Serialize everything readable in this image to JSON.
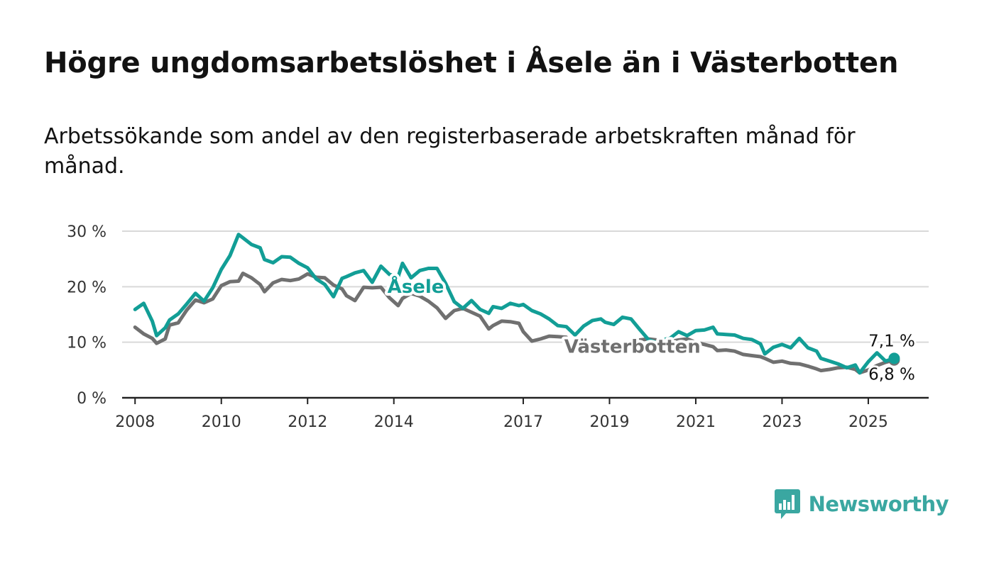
{
  "header": {
    "title": "Högre ungdomsarbetslöshet i Åsele än i Västerbotten",
    "subtitle": "Arbetssökande som andel av den registerbaserade arbetskraften månad för månad."
  },
  "brand": {
    "name": "Newsworthy",
    "color": "#3aa7a1",
    "icon": "newsworthy-logo-icon"
  },
  "chart_data": {
    "type": "line",
    "x_unit": "year (decimal, monthly observations)",
    "y_unit": "%",
    "ylim": [
      0,
      30
    ],
    "xlim": [
      2007.7,
      2026.4
    ],
    "y_ticks": [
      {
        "value": 0,
        "label": "0 %"
      },
      {
        "value": 10,
        "label": "10 %"
      },
      {
        "value": 20,
        "label": "20 %"
      },
      {
        "value": 30,
        "label": "30 %"
      }
    ],
    "x_ticks": [
      {
        "value": 2008,
        "label": "2008"
      },
      {
        "value": 2010,
        "label": "2010"
      },
      {
        "value": 2012,
        "label": "2012"
      },
      {
        "value": 2014,
        "label": "2014"
      },
      {
        "value": 2017,
        "label": "2017"
      },
      {
        "value": 2019,
        "label": "2019"
      },
      {
        "value": 2021,
        "label": "2021"
      },
      {
        "value": 2023,
        "label": "2023"
      },
      {
        "value": 2025,
        "label": "2025"
      }
    ],
    "grid": true,
    "legend": "direct labels",
    "series": [
      {
        "name": "Västerbotten",
        "color": "#707070",
        "label_at": [
          2017.95,
          8.1
        ],
        "end_label": "6,8 %",
        "points": [
          [
            2008.0,
            12.7
          ],
          [
            2008.2,
            11.5
          ],
          [
            2008.4,
            10.7
          ],
          [
            2008.5,
            9.8
          ],
          [
            2008.7,
            10.6
          ],
          [
            2008.8,
            13.1
          ],
          [
            2009.0,
            13.5
          ],
          [
            2009.2,
            15.8
          ],
          [
            2009.4,
            17.6
          ],
          [
            2009.6,
            17.1
          ],
          [
            2009.8,
            17.8
          ],
          [
            2010.0,
            20.2
          ],
          [
            2010.2,
            20.9
          ],
          [
            2010.4,
            21.0
          ],
          [
            2010.5,
            22.4
          ],
          [
            2010.7,
            21.6
          ],
          [
            2010.9,
            20.4
          ],
          [
            2011.0,
            19.1
          ],
          [
            2011.2,
            20.7
          ],
          [
            2011.4,
            21.3
          ],
          [
            2011.6,
            21.1
          ],
          [
            2011.8,
            21.4
          ],
          [
            2012.0,
            22.3
          ],
          [
            2012.2,
            21.7
          ],
          [
            2012.4,
            21.6
          ],
          [
            2012.6,
            20.3
          ],
          [
            2012.8,
            19.6
          ],
          [
            2012.9,
            18.4
          ],
          [
            2013.1,
            17.5
          ],
          [
            2013.3,
            19.9
          ],
          [
            2013.5,
            19.8
          ],
          [
            2013.7,
            19.9
          ],
          [
            2013.9,
            18.0
          ],
          [
            2014.1,
            16.6
          ],
          [
            2014.2,
            17.9
          ],
          [
            2014.4,
            18.8
          ],
          [
            2014.6,
            18.3
          ],
          [
            2014.8,
            17.4
          ],
          [
            2015.0,
            16.2
          ],
          [
            2015.2,
            14.3
          ],
          [
            2015.4,
            15.7
          ],
          [
            2015.6,
            16.1
          ],
          [
            2015.8,
            15.4
          ],
          [
            2016.0,
            14.7
          ],
          [
            2016.2,
            12.4
          ],
          [
            2016.3,
            13.0
          ],
          [
            2016.5,
            13.8
          ],
          [
            2016.7,
            13.7
          ],
          [
            2016.9,
            13.4
          ],
          [
            2017.0,
            11.9
          ],
          [
            2017.2,
            10.2
          ],
          [
            2017.4,
            10.6
          ],
          [
            2017.6,
            11.1
          ],
          [
            2017.8,
            11.0
          ],
          [
            2018.0,
            10.9
          ],
          [
            2018.2,
            8.6
          ],
          [
            2018.4,
            8.6
          ],
          [
            2018.6,
            9.8
          ],
          [
            2018.8,
            9.8
          ],
          [
            2018.9,
            9.5
          ],
          [
            2019.1,
            9.4
          ],
          [
            2019.3,
            9.6
          ],
          [
            2019.5,
            9.9
          ],
          [
            2019.7,
            10.4
          ],
          [
            2019.9,
            10.6
          ],
          [
            2020.1,
            10.4
          ],
          [
            2020.2,
            10.0
          ],
          [
            2020.4,
            10.1
          ],
          [
            2020.6,
            10.4
          ],
          [
            2020.8,
            10.6
          ],
          [
            2021.0,
            10.0
          ],
          [
            2021.2,
            9.6
          ],
          [
            2021.4,
            9.2
          ],
          [
            2021.5,
            8.5
          ],
          [
            2021.7,
            8.6
          ],
          [
            2021.9,
            8.4
          ],
          [
            2022.1,
            7.8
          ],
          [
            2022.3,
            7.6
          ],
          [
            2022.5,
            7.4
          ],
          [
            2022.6,
            7.1
          ],
          [
            2022.8,
            6.4
          ],
          [
            2023.0,
            6.6
          ],
          [
            2023.2,
            6.2
          ],
          [
            2023.4,
            6.1
          ],
          [
            2023.6,
            5.7
          ],
          [
            2023.8,
            5.2
          ],
          [
            2023.9,
            4.9
          ],
          [
            2024.1,
            5.1
          ],
          [
            2024.3,
            5.4
          ],
          [
            2024.5,
            5.5
          ],
          [
            2024.7,
            5.1
          ],
          [
            2024.8,
            4.5
          ],
          [
            2025.0,
            5.0
          ],
          [
            2025.2,
            5.8
          ],
          [
            2025.4,
            6.4
          ],
          [
            2025.6,
            6.8
          ]
        ]
      },
      {
        "name": "Åsele",
        "color": "#129e96",
        "label_at": [
          2013.85,
          18.9
        ],
        "end_label": "7,1 %",
        "points": [
          [
            2008.0,
            15.9
          ],
          [
            2008.2,
            17.0
          ],
          [
            2008.4,
            13.8
          ],
          [
            2008.5,
            11.2
          ],
          [
            2008.7,
            12.6
          ],
          [
            2008.8,
            14.0
          ],
          [
            2009.0,
            15.1
          ],
          [
            2009.2,
            16.9
          ],
          [
            2009.4,
            18.8
          ],
          [
            2009.6,
            17.4
          ],
          [
            2009.8,
            19.8
          ],
          [
            2010.0,
            23.1
          ],
          [
            2010.2,
            25.6
          ],
          [
            2010.4,
            29.4
          ],
          [
            2010.5,
            28.8
          ],
          [
            2010.7,
            27.6
          ],
          [
            2010.9,
            27.0
          ],
          [
            2011.0,
            24.9
          ],
          [
            2011.2,
            24.3
          ],
          [
            2011.4,
            25.4
          ],
          [
            2011.6,
            25.3
          ],
          [
            2011.8,
            24.2
          ],
          [
            2012.0,
            23.4
          ],
          [
            2012.2,
            21.4
          ],
          [
            2012.4,
            20.4
          ],
          [
            2012.6,
            18.2
          ],
          [
            2012.8,
            21.5
          ],
          [
            2012.9,
            21.8
          ],
          [
            2013.1,
            22.5
          ],
          [
            2013.3,
            22.9
          ],
          [
            2013.5,
            20.8
          ],
          [
            2013.7,
            23.7
          ],
          [
            2013.9,
            22.2
          ],
          [
            2014.1,
            21.8
          ],
          [
            2014.2,
            24.2
          ],
          [
            2014.4,
            21.6
          ],
          [
            2014.6,
            22.9
          ],
          [
            2014.8,
            23.3
          ],
          [
            2015.0,
            23.3
          ],
          [
            2015.2,
            20.6
          ],
          [
            2015.4,
            17.3
          ],
          [
            2015.6,
            16.1
          ],
          [
            2015.8,
            17.5
          ],
          [
            2016.0,
            15.9
          ],
          [
            2016.2,
            15.2
          ],
          [
            2016.3,
            16.4
          ],
          [
            2016.5,
            16.1
          ],
          [
            2016.7,
            17.0
          ],
          [
            2016.9,
            16.6
          ],
          [
            2017.0,
            16.8
          ],
          [
            2017.2,
            15.7
          ],
          [
            2017.4,
            15.1
          ],
          [
            2017.6,
            14.2
          ],
          [
            2017.8,
            13.0
          ],
          [
            2018.0,
            12.8
          ],
          [
            2018.2,
            11.3
          ],
          [
            2018.4,
            12.9
          ],
          [
            2018.6,
            13.9
          ],
          [
            2018.8,
            14.2
          ],
          [
            2018.9,
            13.6
          ],
          [
            2019.1,
            13.2
          ],
          [
            2019.3,
            14.5
          ],
          [
            2019.5,
            14.2
          ],
          [
            2019.7,
            12.3
          ],
          [
            2019.9,
            10.5
          ],
          [
            2020.1,
            9.9
          ],
          [
            2020.2,
            10.4
          ],
          [
            2020.4,
            10.7
          ],
          [
            2020.6,
            11.9
          ],
          [
            2020.8,
            11.2
          ],
          [
            2021.0,
            12.1
          ],
          [
            2021.2,
            12.2
          ],
          [
            2021.4,
            12.7
          ],
          [
            2021.5,
            11.5
          ],
          [
            2021.7,
            11.4
          ],
          [
            2021.9,
            11.3
          ],
          [
            2022.1,
            10.7
          ],
          [
            2022.3,
            10.5
          ],
          [
            2022.5,
            9.7
          ],
          [
            2022.6,
            7.9
          ],
          [
            2022.8,
            9.1
          ],
          [
            2023.0,
            9.6
          ],
          [
            2023.2,
            9.0
          ],
          [
            2023.4,
            10.7
          ],
          [
            2023.6,
            9.0
          ],
          [
            2023.8,
            8.4
          ],
          [
            2023.9,
            7.1
          ],
          [
            2024.1,
            6.6
          ],
          [
            2024.3,
            6.1
          ],
          [
            2024.5,
            5.4
          ],
          [
            2024.7,
            5.9
          ],
          [
            2024.8,
            4.5
          ],
          [
            2025.0,
            6.5
          ],
          [
            2025.2,
            8.1
          ],
          [
            2025.4,
            6.6
          ],
          [
            2025.6,
            7.1
          ]
        ]
      }
    ]
  }
}
